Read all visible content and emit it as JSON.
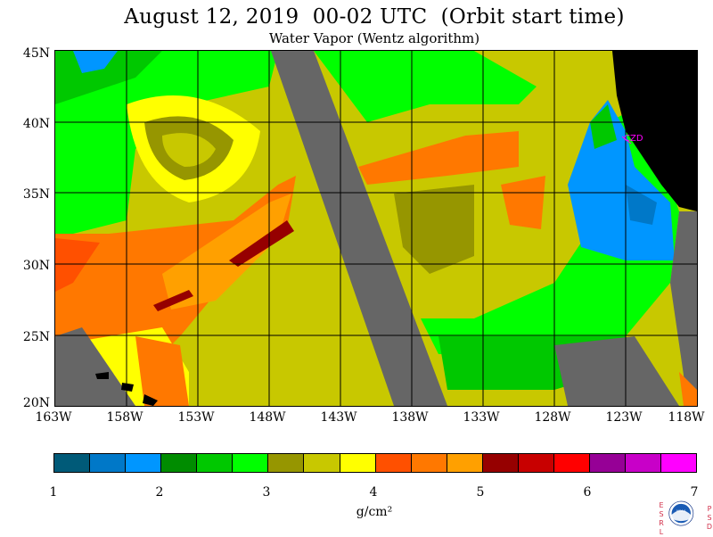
{
  "title": "August 12, 2019  00-02 UTC  (Orbit start time)",
  "subtitle": "Water Vapor (Wentz algorithm)",
  "map": {
    "lat_labels": [
      "45N",
      "40N",
      "35N",
      "30N",
      "25N",
      "20N"
    ],
    "lon_labels": [
      "163W",
      "158W",
      "153W",
      "148W",
      "143W",
      "138W",
      "133W",
      "128W",
      "123W",
      "118W"
    ],
    "lat_range": [
      20,
      45
    ],
    "lon_range": [
      -163,
      -118
    ],
    "station_label": "CZD",
    "colors": {
      "no_data": "#666666",
      "land": "#000000",
      "gridline": "#000000",
      "station": "#ff00ff"
    }
  },
  "colorbar": {
    "ticks": [
      "1",
      "2",
      "3",
      "4",
      "5",
      "6",
      "7"
    ],
    "unit_label": "g/cm²",
    "colors": [
      "#005a78",
      "#0078c8",
      "#0096ff",
      "#008c00",
      "#00c800",
      "#00ff00",
      "#969600",
      "#c8c800",
      "#ffff00",
      "#ff5000",
      "#ff7800",
      "#ffa000",
      "#960000",
      "#c80000",
      "#ff0000",
      "#960096",
      "#c800c8",
      "#ff00ff"
    ]
  },
  "logo": {
    "name": "noaa-logo",
    "text": "NOAA",
    "left_letters": [
      "E",
      "S",
      "R",
      "L"
    ],
    "right_letters": [
      "P",
      "S",
      "D"
    ]
  }
}
